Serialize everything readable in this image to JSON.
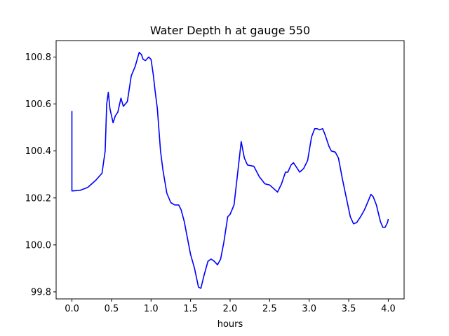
{
  "chart_data": {
    "type": "line",
    "title": "Water Depth h at gauge 550",
    "xlabel": "hours",
    "ylabel": "",
    "xlim": [
      -0.2,
      4.2
    ],
    "ylim": [
      99.77,
      100.87
    ],
    "xticks": [
      0.0,
      0.5,
      1.0,
      1.5,
      2.0,
      2.5,
      3.0,
      3.5,
      4.0
    ],
    "xtick_labels": [
      "0.0",
      "0.5",
      "1.0",
      "1.5",
      "2.0",
      "2.5",
      "3.0",
      "3.5",
      "4.0"
    ],
    "yticks": [
      99.8,
      100.0,
      100.2,
      100.4,
      100.6,
      100.8
    ],
    "ytick_labels": [
      "99.8",
      "100.0",
      "100.2",
      "100.4",
      "100.6",
      "100.8"
    ],
    "grid": false,
    "line_color": "#0000ff",
    "series": [
      {
        "name": "",
        "x": [
          0.0,
          0.0,
          0.01,
          0.1,
          0.2,
          0.3,
          0.38,
          0.42,
          0.44,
          0.46,
          0.48,
          0.52,
          0.55,
          0.58,
          0.62,
          0.65,
          0.7,
          0.75,
          0.8,
          0.85,
          0.88,
          0.9,
          0.93,
          0.97,
          1.0,
          1.03,
          1.05,
          1.08,
          1.12,
          1.15,
          1.2,
          1.25,
          1.3,
          1.35,
          1.38,
          1.42,
          1.5,
          1.55,
          1.6,
          1.63,
          1.67,
          1.72,
          1.76,
          1.8,
          1.84,
          1.88,
          1.92,
          1.97,
          2.0,
          2.05,
          2.1,
          2.14,
          2.18,
          2.22,
          2.3,
          2.37,
          2.44,
          2.5,
          2.55,
          2.6,
          2.65,
          2.7,
          2.73,
          2.77,
          2.8,
          2.84,
          2.88,
          2.93,
          2.98,
          3.03,
          3.07,
          3.1,
          3.13,
          3.17,
          3.2,
          3.25,
          3.28,
          3.33,
          3.37,
          3.42,
          3.47,
          3.52,
          3.56,
          3.6,
          3.65,
          3.7,
          3.75,
          3.78,
          3.81,
          3.85,
          3.9,
          3.93,
          3.96,
          3.99,
          4.0
        ],
        "y": [
          100.57,
          100.23,
          100.23,
          100.232,
          100.245,
          100.275,
          100.305,
          100.4,
          100.6,
          100.65,
          100.58,
          100.52,
          100.55,
          100.565,
          100.625,
          100.59,
          100.61,
          100.72,
          100.76,
          100.82,
          100.81,
          100.79,
          100.785,
          100.8,
          100.79,
          100.72,
          100.66,
          100.58,
          100.4,
          100.32,
          100.22,
          100.18,
          100.17,
          100.17,
          100.15,
          100.1,
          99.96,
          99.9,
          99.82,
          99.815,
          99.87,
          99.93,
          99.94,
          99.93,
          99.915,
          99.94,
          100.01,
          100.12,
          100.13,
          100.17,
          100.32,
          100.44,
          100.37,
          100.34,
          100.335,
          100.29,
          100.26,
          100.255,
          100.24,
          100.225,
          100.26,
          100.31,
          100.31,
          100.34,
          100.35,
          100.33,
          100.31,
          100.325,
          100.36,
          100.46,
          100.495,
          100.495,
          100.49,
          100.495,
          100.47,
          100.42,
          100.4,
          100.395,
          100.37,
          100.28,
          100.2,
          100.12,
          100.09,
          100.095,
          100.12,
          100.15,
          100.19,
          100.215,
          100.205,
          100.17,
          100.1,
          100.075,
          100.075,
          100.095,
          100.11
        ]
      }
    ]
  }
}
